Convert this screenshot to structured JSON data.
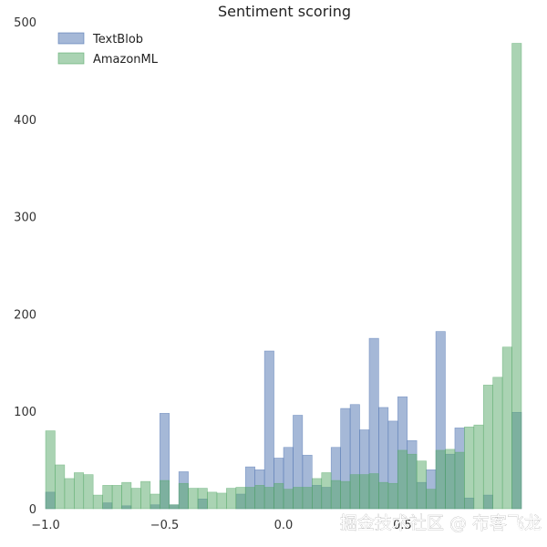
{
  "chart_data": {
    "type": "bar",
    "subtype": "overlaid-histogram",
    "title": "Sentiment scoring",
    "xlabel": "",
    "ylabel": "",
    "xlim": [
      -1.0,
      1.0
    ],
    "ylim": [
      0,
      500
    ],
    "bins": 50,
    "xticks": [
      -1.0,
      -0.5,
      0.0,
      0.5
    ],
    "xtick_labels": [
      "−1.0",
      "−0.5",
      "0.0",
      "0.5"
    ],
    "yticks": [
      0,
      100,
      200,
      300,
      400,
      500
    ],
    "ytick_labels": [
      "0",
      "100",
      "200",
      "300",
      "400",
      "500"
    ],
    "grid": false,
    "legend_position": "top-left",
    "series": [
      {
        "name": "TextBlob",
        "color": "#4c72b0",
        "values": [
          17,
          0,
          0,
          0,
          0,
          0,
          6,
          0,
          3,
          0,
          0,
          4,
          98,
          4,
          38,
          0,
          10,
          0,
          0,
          0,
          15,
          43,
          40,
          162,
          52,
          63,
          96,
          55,
          24,
          22,
          63,
          103,
          107,
          81,
          175,
          104,
          90,
          115,
          70,
          27,
          40,
          182,
          56,
          83,
          11,
          0,
          14,
          0,
          0,
          99
        ]
      },
      {
        "name": "AmazonML",
        "color": "#55a868",
        "values": [
          80,
          45,
          31,
          37,
          35,
          14,
          24,
          24,
          27,
          21,
          28,
          15,
          29,
          4,
          26,
          21,
          21,
          17,
          16,
          21,
          22,
          22,
          24,
          22,
          26,
          20,
          22,
          22,
          31,
          37,
          29,
          28,
          35,
          35,
          36,
          27,
          26,
          60,
          56,
          49,
          20,
          60,
          61,
          58,
          84,
          86,
          127,
          135,
          166,
          478
        ]
      }
    ]
  },
  "watermark": "掘金技术社区 @ 布客飞龙"
}
